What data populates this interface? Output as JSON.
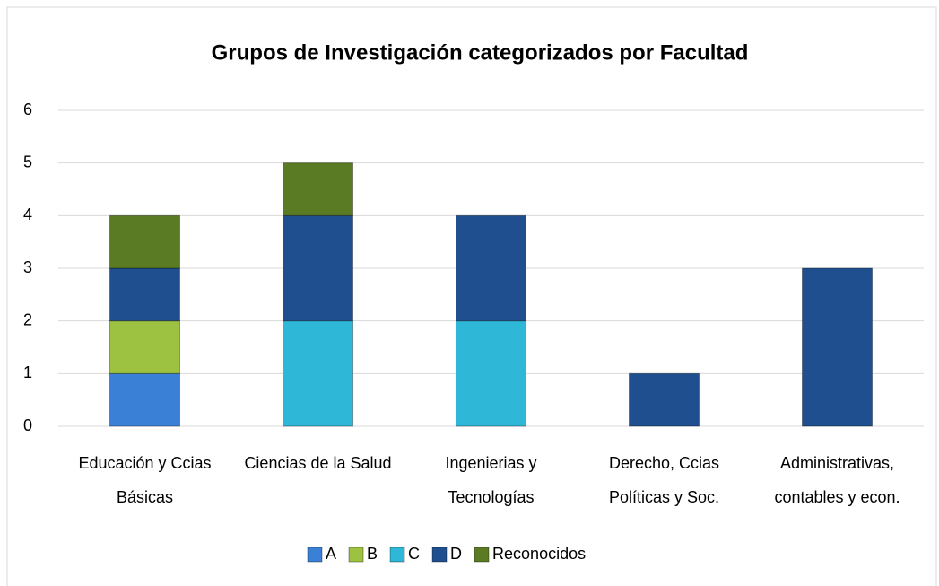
{
  "chart_data": {
    "type": "bar",
    "stacked": true,
    "title": "Grupos de Investigación categorizados por Facultad",
    "categories": [
      "Educación y Ccias Básicas",
      "Ciencias de la Salud",
      "Ingenierias y Tecnologías",
      "Derecho, Ccias Políticas y Soc.",
      "Administrativas, contables y econ."
    ],
    "series": [
      {
        "name": "A",
        "color": "#3a80d6",
        "values": [
          1,
          0,
          0,
          0,
          0
        ]
      },
      {
        "name": "B",
        "color": "#9dc141",
        "values": [
          1,
          0,
          0,
          0,
          0
        ]
      },
      {
        "name": "C",
        "color": "#2fb7d8",
        "values": [
          0,
          2,
          2,
          0,
          0
        ]
      },
      {
        "name": "D",
        "color": "#1f4f8e",
        "values": [
          1,
          2,
          2,
          1,
          3
        ]
      },
      {
        "name": "Reconocidos",
        "color": "#5b7a24",
        "values": [
          1,
          1,
          0,
          0,
          0
        ]
      }
    ],
    "ylim": [
      0,
      6
    ],
    "yticks": [
      0,
      1,
      2,
      3,
      4,
      5,
      6
    ],
    "grid": true,
    "legend": "bottom"
  }
}
